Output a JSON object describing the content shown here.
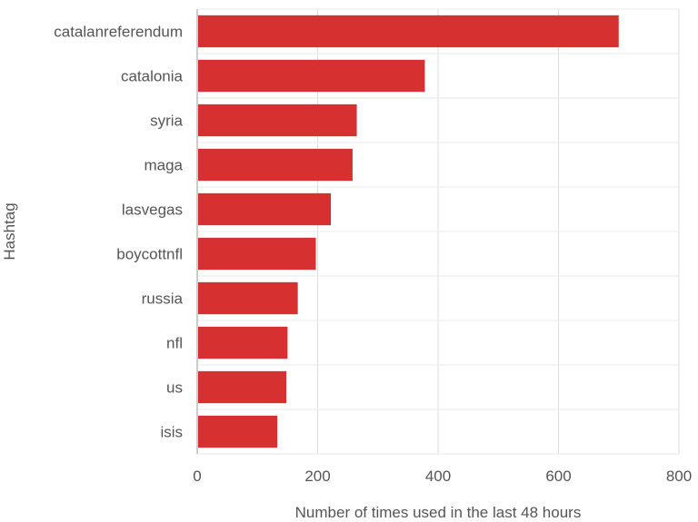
{
  "chart_data": {
    "type": "bar",
    "orientation": "horizontal",
    "categories": [
      "catalanreferendum",
      "catalonia",
      "syria",
      "maga",
      "lasvegas",
      "boycottnfl",
      "russia",
      "nfl",
      "us",
      "isis"
    ],
    "values": [
      700,
      378,
      265,
      258,
      222,
      197,
      167,
      150,
      148,
      133
    ],
    "xlabel": "Number of times used in the last 48 hours",
    "ylabel": "Hashtag",
    "xlim": [
      0,
      800
    ],
    "xticks": [
      "0",
      "200",
      "400",
      "600",
      "800"
    ],
    "grid": true,
    "bar_color": "#d63031"
  }
}
